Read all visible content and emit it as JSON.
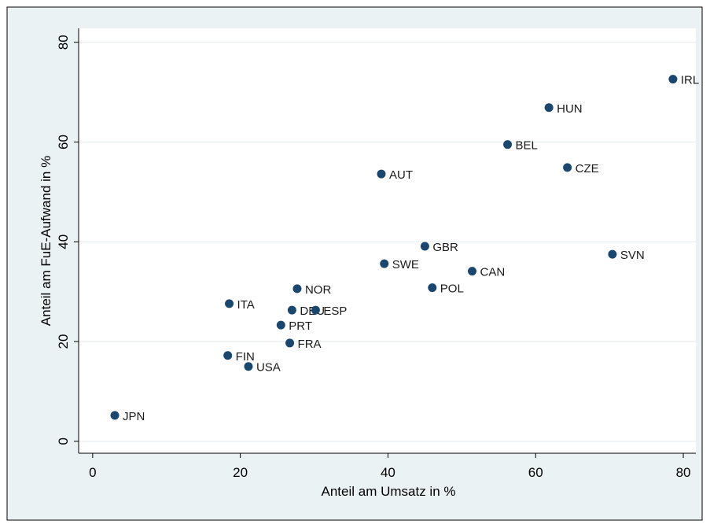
{
  "chart_data": {
    "type": "scatter",
    "x_label": "Anteil am Umsatz in %",
    "y_label": "Anteil am FuE-Aufwand in %",
    "labels": [
      "JPN",
      "FIN",
      "USA",
      "ITA",
      "PRT",
      "DEU",
      "NOR",
      "ESP",
      "FRA",
      "SWE",
      "AUT",
      "GBR",
      "POL",
      "CAN",
      "BEL",
      "HUN",
      "CZE",
      "SVN",
      "IRL"
    ],
    "x": [
      3.0,
      18.3,
      21.1,
      18.5,
      25.5,
      27.0,
      27.7,
      30.2,
      26.7,
      39.5,
      39.1,
      45.0,
      46.0,
      51.4,
      56.2,
      61.8,
      64.3,
      70.4,
      78.6
    ],
    "values": [
      5.2,
      17.2,
      15.0,
      27.6,
      23.3,
      26.3,
      30.6,
      26.3,
      19.7,
      35.6,
      53.6,
      39.1,
      30.8,
      34.1,
      59.5,
      66.9,
      54.9,
      37.5,
      72.6
    ],
    "color": "#1a476f",
    "xlim": [
      -1.9,
      81.7
    ],
    "ylim": [
      -2.4,
      82.8
    ],
    "xticks": [
      0,
      20,
      40,
      60,
      80
    ],
    "yticks": [
      0,
      20,
      40,
      60,
      80
    ],
    "grid": true
  }
}
